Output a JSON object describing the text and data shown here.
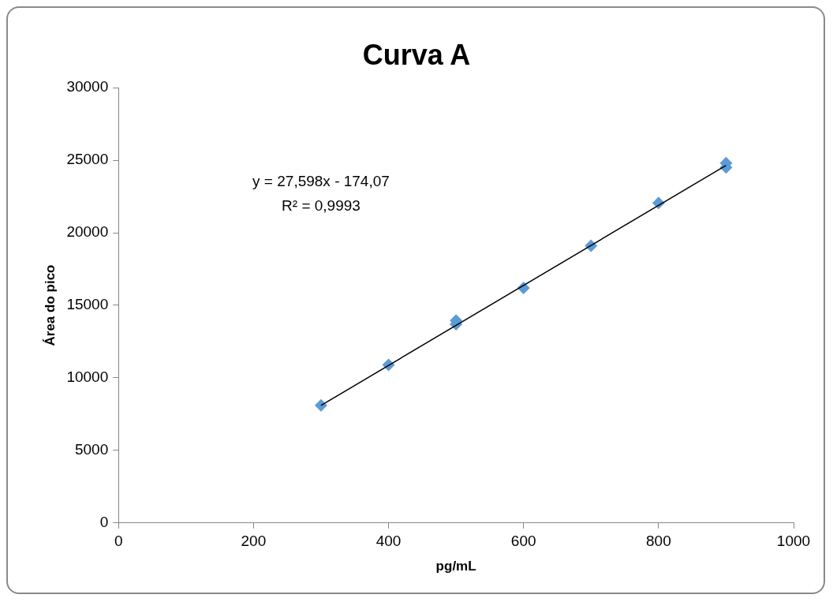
{
  "chart_data": {
    "type": "scatter",
    "title": "Curva A",
    "xlabel": "pg/mL",
    "ylabel": "Área do pico",
    "series": [
      {
        "type": "scatter",
        "color": "#5b9bd5",
        "marker": "diamond",
        "x": [
          300,
          400,
          500,
          500,
          600,
          700,
          800,
          900,
          900
        ],
        "values": [
          8100,
          10900,
          13700,
          13950,
          16200,
          19100,
          22050,
          24500,
          24800
        ]
      },
      {
        "type": "line",
        "color": "#000000",
        "marker": "none",
        "x": [
          300,
          900
        ],
        "values": [
          8100,
          24650
        ]
      }
    ],
    "xlim": [
      0,
      1000
    ],
    "xticks": [
      0,
      200,
      400,
      600,
      800,
      1000
    ],
    "ylim": [
      0,
      30000
    ],
    "yticks": [
      0,
      5000,
      10000,
      15000,
      20000,
      25000,
      30000
    ],
    "annotations": [
      "y = 27,598x - 174,07",
      "R² = 0,9993"
    ],
    "grid": false,
    "legend": false,
    "line_style": "solid"
  }
}
